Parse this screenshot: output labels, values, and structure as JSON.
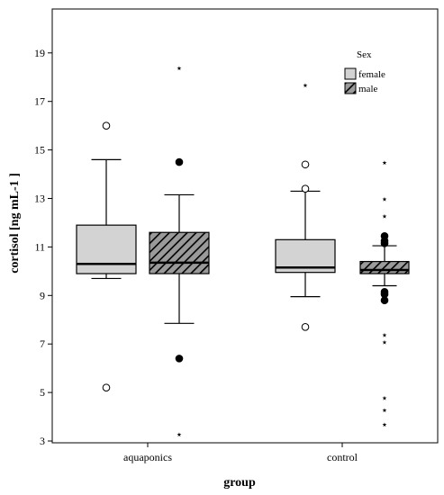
{
  "chart_data": {
    "type": "boxplot",
    "xlabel": "group",
    "ylabel": "cortisol [ng mL-1 ]",
    "ylim": [
      3,
      20
    ],
    "yticks": [
      3,
      5,
      7,
      9,
      11,
      13,
      15,
      17,
      19
    ],
    "categories": [
      "aquaponics",
      "control"
    ],
    "grid": false,
    "legend": {
      "title": "Sex",
      "position": "top-right",
      "entries": [
        {
          "label": "female",
          "fill": "solid-gray"
        },
        {
          "label": "male",
          "fill": "hatched"
        }
      ]
    },
    "series": [
      {
        "name": "female",
        "boxes": [
          {
            "category": "aquaponics",
            "min": 9.7,
            "q1": 9.9,
            "median": 10.3,
            "q3": 11.9,
            "max": 14.6,
            "outliers": [
              16.0,
              5.2
            ],
            "extremes": []
          },
          {
            "category": "control",
            "min": 8.95,
            "q1": 9.95,
            "median": 10.15,
            "q3": 11.3,
            "max": 13.3,
            "outliers": [
              14.4,
              13.4,
              7.7
            ],
            "extremes": [
              17.7
            ]
          }
        ]
      },
      {
        "name": "male",
        "boxes": [
          {
            "category": "aquaponics",
            "min": 7.85,
            "q1": 9.9,
            "median": 10.35,
            "q3": 11.6,
            "max": 13.15,
            "outliers": [
              14.5,
              6.4
            ],
            "extremes": [
              18.4,
              3.3
            ]
          },
          {
            "category": "control",
            "min": 9.4,
            "q1": 9.9,
            "median": 10.05,
            "q3": 10.4,
            "max": 11.05,
            "outliers": [
              11.45,
              11.25,
              11.15,
              9.15,
              9.05,
              8.8
            ],
            "extremes": [
              14.5,
              13.0,
              12.3,
              7.4,
              7.1,
              4.8,
              4.3,
              3.7
            ]
          }
        ]
      }
    ]
  },
  "colors": {
    "female_fill": "#d3d3d3",
    "male_fill": "#8a8a8a",
    "line": "#000000",
    "background": "#ffffff"
  }
}
